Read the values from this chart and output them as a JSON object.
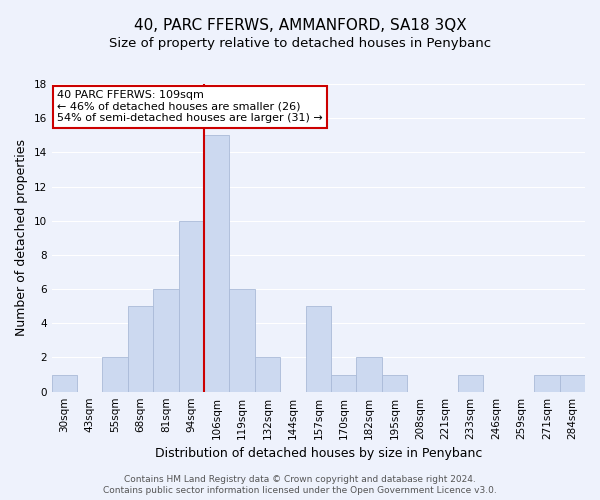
{
  "title": "40, PARC FFERWS, AMMANFORD, SA18 3QX",
  "subtitle": "Size of property relative to detached houses in Penybanc",
  "xlabel": "Distribution of detached houses by size in Penybanc",
  "ylabel": "Number of detached properties",
  "bin_labels": [
    "30sqm",
    "43sqm",
    "55sqm",
    "68sqm",
    "81sqm",
    "94sqm",
    "106sqm",
    "119sqm",
    "132sqm",
    "144sqm",
    "157sqm",
    "170sqm",
    "182sqm",
    "195sqm",
    "208sqm",
    "221sqm",
    "233sqm",
    "246sqm",
    "259sqm",
    "271sqm",
    "284sqm"
  ],
  "bar_heights": [
    1,
    0,
    2,
    5,
    6,
    10,
    15,
    6,
    2,
    0,
    5,
    1,
    2,
    1,
    0,
    0,
    1,
    0,
    0,
    1,
    1
  ],
  "bar_color": "#ccd9f0",
  "bar_edge_color": "#aabbd8",
  "highlight_bin_index": 6,
  "highlight_line_color": "#cc0000",
  "ylim": [
    0,
    18
  ],
  "yticks": [
    0,
    2,
    4,
    6,
    8,
    10,
    12,
    14,
    16,
    18
  ],
  "annotation_title": "40 PARC FFERWS: 109sqm",
  "annotation_line1": "← 46% of detached houses are smaller (26)",
  "annotation_line2": "54% of semi-detached houses are larger (31) →",
  "annotation_box_color": "#ffffff",
  "annotation_box_edge_color": "#cc0000",
  "footer_line1": "Contains HM Land Registry data © Crown copyright and database right 2024.",
  "footer_line2": "Contains public sector information licensed under the Open Government Licence v3.0.",
  "background_color": "#eef2fc",
  "grid_color": "#ffffff",
  "title_fontsize": 11,
  "subtitle_fontsize": 9.5,
  "axis_label_fontsize": 9,
  "tick_fontsize": 7.5,
  "annotation_fontsize": 8,
  "footer_fontsize": 6.5
}
